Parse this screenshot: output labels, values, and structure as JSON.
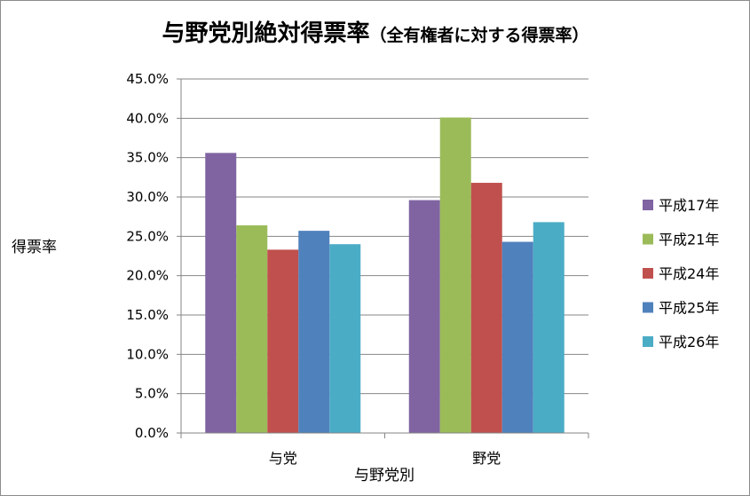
{
  "chart_data": {
    "type": "bar",
    "title": "与野党別絶対得票率",
    "subtitle": "（全有権者に対する得票率）",
    "xlabel": "与野党別",
    "ylabel": "得票率",
    "categories": [
      "与党",
      "野党"
    ],
    "series": [
      {
        "name": "平成17年",
        "color": "#8064a2",
        "values": [
          35.6,
          29.6
        ]
      },
      {
        "name": "平成21年",
        "color": "#9bbb59",
        "values": [
          26.4,
          40.1
        ]
      },
      {
        "name": "平成24年",
        "color": "#c0504d",
        "values": [
          23.3,
          31.8
        ]
      },
      {
        "name": "平成25年",
        "color": "#4f81bd",
        "values": [
          25.7,
          24.3
        ]
      },
      {
        "name": "平成26年",
        "color": "#4bacc6",
        "values": [
          24.0,
          26.8
        ]
      }
    ],
    "ylim": [
      0,
      45
    ],
    "ytick_step": 5,
    "ytick_labels": [
      "0.0%",
      "5.0%",
      "10.0%",
      "15.0%",
      "20.0%",
      "25.0%",
      "30.0%",
      "35.0%",
      "40.0%",
      "45.0%"
    ],
    "grid": true,
    "legend_position": "right"
  }
}
